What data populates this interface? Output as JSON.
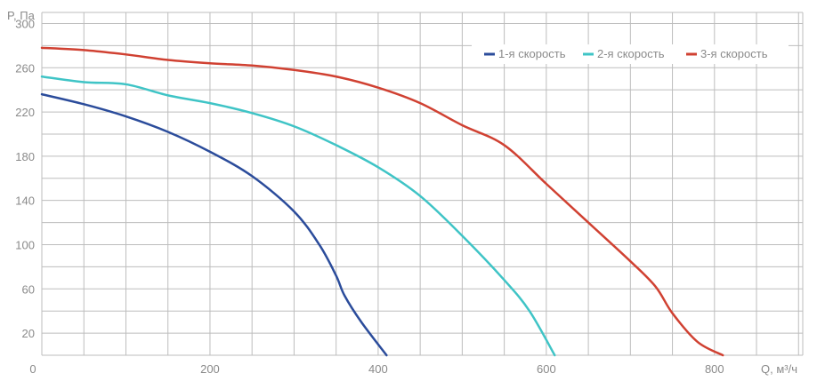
{
  "chart_data": {
    "type": "line",
    "xlabel": "Q, м³/ч",
    "ylabel": "P, Па",
    "xlim": [
      0,
      905
    ],
    "ylim": [
      0,
      310
    ],
    "x_ticks": [
      0,
      200,
      400,
      600,
      800
    ],
    "y_ticks": [
      20,
      60,
      100,
      140,
      180,
      220,
      260,
      300
    ],
    "x_grid_step": 50,
    "y_grid_step": 20,
    "grid": true,
    "legend_position": "top-right",
    "series": [
      {
        "name": "1-я скорость",
        "color": "#2b4c9b",
        "points": [
          [
            0,
            236
          ],
          [
            50,
            227
          ],
          [
            100,
            216
          ],
          [
            150,
            202
          ],
          [
            200,
            184
          ],
          [
            250,
            162
          ],
          [
            300,
            130
          ],
          [
            330,
            100
          ],
          [
            350,
            72
          ],
          [
            360,
            54
          ],
          [
            380,
            30
          ],
          [
            410,
            0
          ]
        ]
      },
      {
        "name": "2-я скорость",
        "color": "#3fc4c6",
        "points": [
          [
            0,
            252
          ],
          [
            50,
            247
          ],
          [
            100,
            245
          ],
          [
            150,
            235
          ],
          [
            200,
            228
          ],
          [
            250,
            219
          ],
          [
            300,
            207
          ],
          [
            350,
            190
          ],
          [
            400,
            170
          ],
          [
            450,
            144
          ],
          [
            500,
            108
          ],
          [
            550,
            68
          ],
          [
            580,
            40
          ],
          [
            610,
            0
          ]
        ]
      },
      {
        "name": "3-я скорость",
        "color": "#d04132",
        "points": [
          [
            0,
            278
          ],
          [
            50,
            276
          ],
          [
            100,
            272
          ],
          [
            150,
            267
          ],
          [
            200,
            264
          ],
          [
            250,
            262
          ],
          [
            300,
            258
          ],
          [
            350,
            252
          ],
          [
            400,
            242
          ],
          [
            450,
            228
          ],
          [
            500,
            208
          ],
          [
            550,
            190
          ],
          [
            600,
            155
          ],
          [
            650,
            120
          ],
          [
            700,
            85
          ],
          [
            730,
            62
          ],
          [
            750,
            38
          ],
          [
            780,
            12
          ],
          [
            810,
            0
          ]
        ]
      }
    ]
  }
}
